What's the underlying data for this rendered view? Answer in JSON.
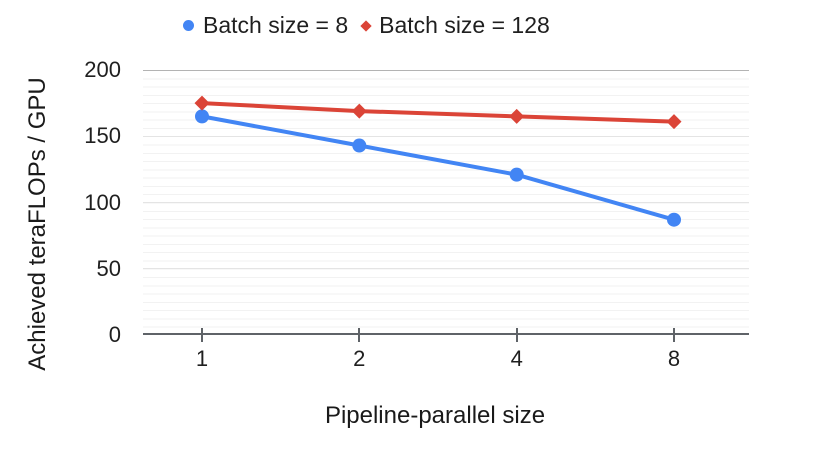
{
  "chart_data": {
    "type": "line",
    "title": "",
    "xlabel": "Pipeline-parallel size",
    "ylabel": "Achieved teraFLOPs / GPU",
    "categories": [
      "1",
      "2",
      "4",
      "8"
    ],
    "x_values": [
      1,
      2,
      4,
      8
    ],
    "ylim": [
      0,
      200
    ],
    "yticks": [
      0,
      50,
      100,
      150,
      200
    ],
    "grid": "horizontal major every 50 with fine minor lines, no vertical gridlines",
    "legend_position": "top-center",
    "axis_color": "#5f6368",
    "text_color": "#1f1f1f",
    "background_color": "#ffffff",
    "series": [
      {
        "name": "Batch size = 8",
        "color": "#4285F4",
        "marker": "circle",
        "values": [
          165,
          143,
          121,
          87
        ]
      },
      {
        "name": "Batch size = 128",
        "color": "#DB4437",
        "marker": "diamond",
        "values": [
          175,
          169,
          165,
          161
        ]
      }
    ]
  }
}
